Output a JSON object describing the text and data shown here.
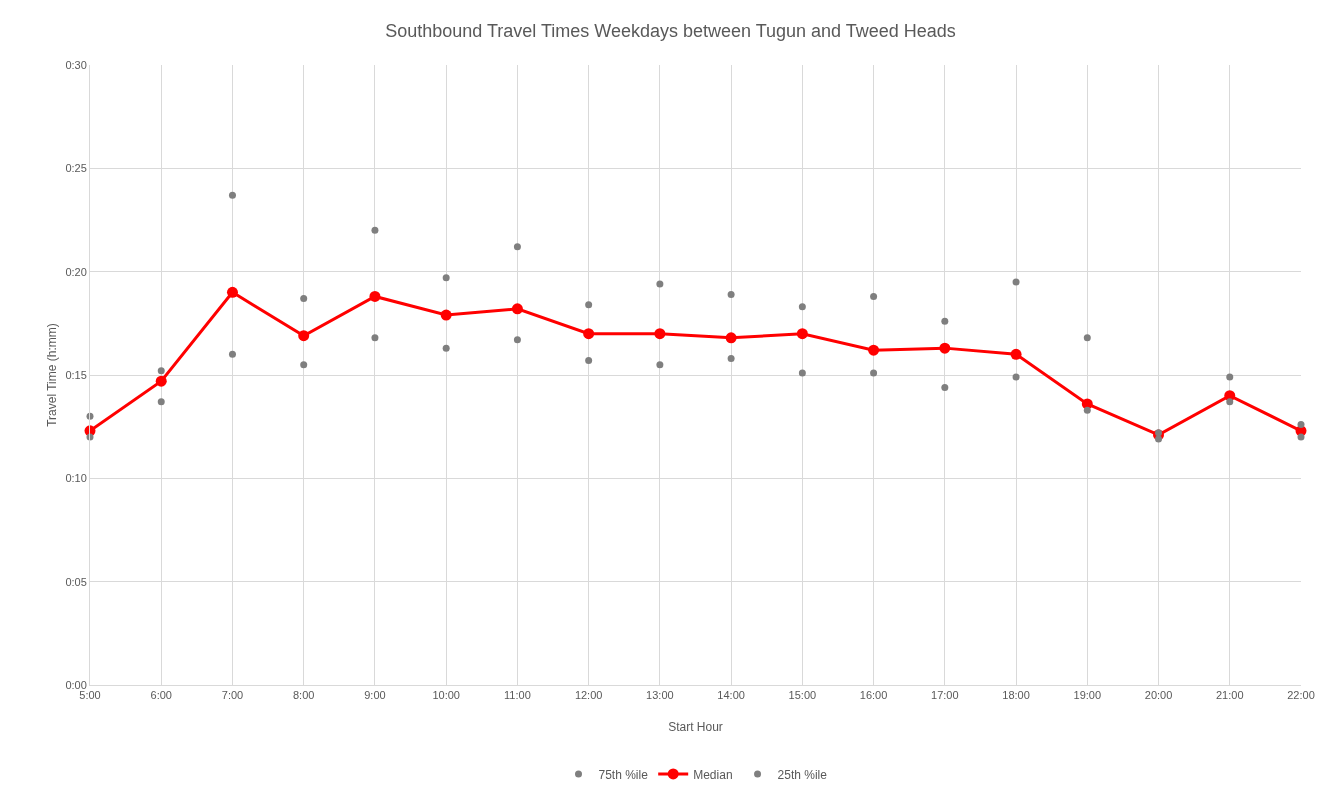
{
  "chart_data": {
    "type": "line",
    "title": "Southbound Travel Times Weekdays between Tugun and Tweed Heads",
    "xlabel": "Start Hour",
    "ylabel": "Travel Time (h:mm)",
    "x": [
      5,
      6,
      7,
      8,
      9,
      10,
      11,
      12,
      13,
      14,
      15,
      16,
      17,
      18,
      19,
      20,
      21,
      22
    ],
    "series": [
      {
        "name": "75th %ile",
        "type": "scatter",
        "color": "#7f7f7f",
        "values": [
          13.0,
          15.2,
          23.7,
          18.7,
          22.0,
          19.7,
          21.2,
          18.4,
          19.4,
          18.9,
          18.3,
          18.8,
          17.6,
          19.5,
          16.8,
          12.2,
          14.9,
          12.6
        ]
      },
      {
        "name": "Median",
        "type": "line",
        "color": "#ff0000",
        "values": [
          12.3,
          14.7,
          19.0,
          16.9,
          18.8,
          17.9,
          18.2,
          17.0,
          17.0,
          16.8,
          17.0,
          16.2,
          16.3,
          16.0,
          13.6,
          12.1,
          14.0,
          12.3
        ]
      },
      {
        "name": "25th %ile",
        "type": "scatter",
        "color": "#7f7f7f",
        "values": [
          12.0,
          13.7,
          16.0,
          15.5,
          16.8,
          16.3,
          16.7,
          15.7,
          15.5,
          15.8,
          15.1,
          15.1,
          14.4,
          14.9,
          13.3,
          11.9,
          13.7,
          12.0
        ]
      }
    ],
    "xlim": [
      5,
      22
    ],
    "xticks": [
      {
        "value": 5,
        "label": "5:00"
      },
      {
        "value": 6,
        "label": "6:00"
      },
      {
        "value": 7,
        "label": "7:00"
      },
      {
        "value": 8,
        "label": "8:00"
      },
      {
        "value": 9,
        "label": "9:00"
      },
      {
        "value": 10,
        "label": "10:00"
      },
      {
        "value": 11,
        "label": "11:00"
      },
      {
        "value": 12,
        "label": "12:00"
      },
      {
        "value": 13,
        "label": "13:00"
      },
      {
        "value": 14,
        "label": "14:00"
      },
      {
        "value": 15,
        "label": "15:00"
      },
      {
        "value": 16,
        "label": "16:00"
      },
      {
        "value": 17,
        "label": "17:00"
      },
      {
        "value": 18,
        "label": "18:00"
      },
      {
        "value": 19,
        "label": "19:00"
      },
      {
        "value": 20,
        "label": "20:00"
      },
      {
        "value": 21,
        "label": "21:00"
      },
      {
        "value": 22,
        "label": "22:00"
      }
    ],
    "ylim": [
      0,
      30
    ],
    "yticks": [
      {
        "value": 0,
        "label": "0:00"
      },
      {
        "value": 5,
        "label": "0:05"
      },
      {
        "value": 10,
        "label": "0:10"
      },
      {
        "value": 15,
        "label": "0:15"
      },
      {
        "value": 20,
        "label": "0:20"
      },
      {
        "value": 25,
        "label": "0:25"
      },
      {
        "value": 30,
        "label": "0:30"
      }
    ],
    "grid": true,
    "legend": "bottom",
    "marker": "circle",
    "line_style": "solid"
  }
}
